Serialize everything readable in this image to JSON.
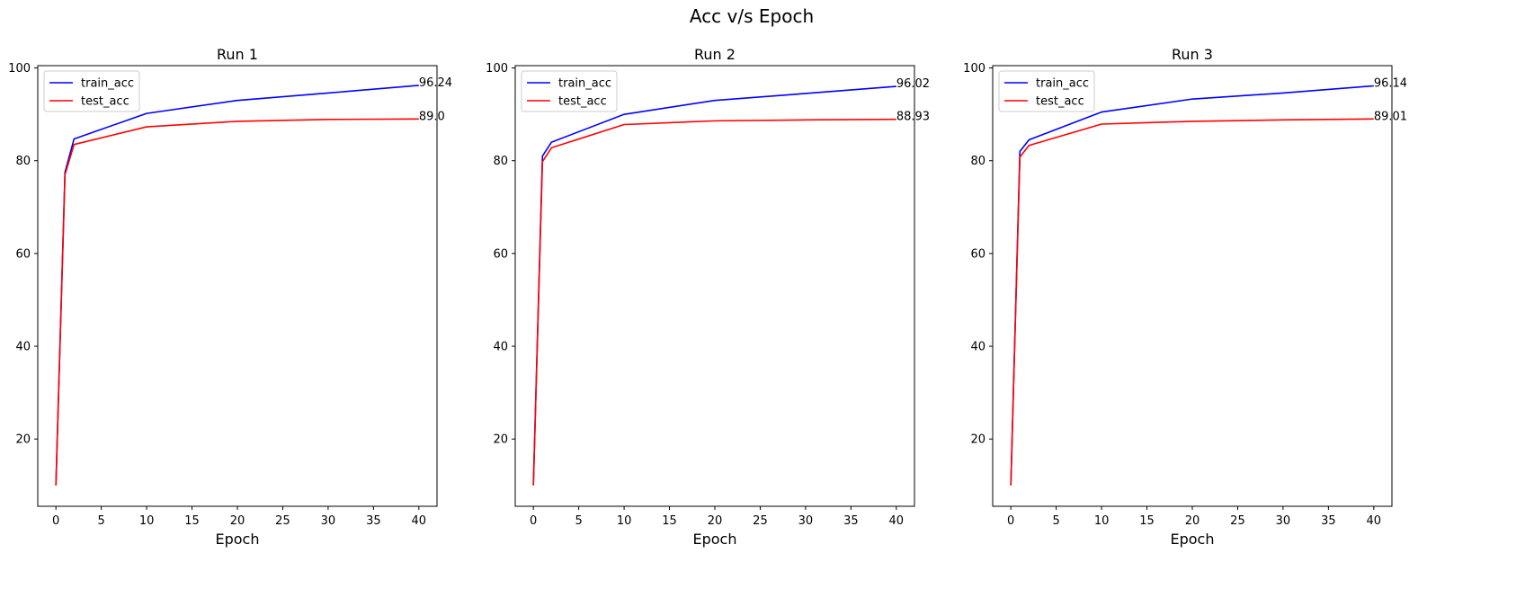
{
  "figure": {
    "title": "Acc v/s Epoch"
  },
  "chart_data": [
    {
      "type": "line",
      "title": "Run 1",
      "xlabel": "Epoch",
      "ylabel": "",
      "xlim": [
        -2,
        42
      ],
      "ylim": [
        5.5,
        100.5
      ],
      "xticks": [
        0,
        5,
        10,
        15,
        20,
        25,
        30,
        35,
        40
      ],
      "yticks": [
        20,
        40,
        60,
        80,
        100
      ],
      "legend": "top-left",
      "grid": false,
      "series": [
        {
          "name": "train_acc",
          "color": "#0000ff",
          "x": [
            0,
            1,
            2,
            10,
            20,
            30,
            40
          ],
          "y": [
            10,
            77.5,
            84.7,
            90.2,
            93.0,
            94.6,
            96.24
          ],
          "end_label": "96.24"
        },
        {
          "name": "test_acc",
          "color": "#ff0000",
          "x": [
            0,
            1,
            2,
            10,
            20,
            30,
            40
          ],
          "y": [
            10,
            77.0,
            83.5,
            87.3,
            88.5,
            88.9,
            89.0
          ],
          "end_label": "89.0"
        }
      ]
    },
    {
      "type": "line",
      "title": "Run 2",
      "xlabel": "Epoch",
      "ylabel": "",
      "xlim": [
        -2,
        42
      ],
      "ylim": [
        5.5,
        100.5
      ],
      "xticks": [
        0,
        5,
        10,
        15,
        20,
        25,
        30,
        35,
        40
      ],
      "yticks": [
        20,
        40,
        60,
        80,
        100
      ],
      "legend": "top-left",
      "grid": false,
      "series": [
        {
          "name": "train_acc",
          "color": "#0000ff",
          "x": [
            0,
            1,
            2,
            10,
            20,
            30,
            40
          ],
          "y": [
            10,
            81.0,
            84.0,
            90.0,
            93.0,
            94.5,
            96.02
          ],
          "end_label": "96.02"
        },
        {
          "name": "test_acc",
          "color": "#ff0000",
          "x": [
            0,
            1,
            2,
            10,
            20,
            30,
            40
          ],
          "y": [
            10,
            79.8,
            82.8,
            87.8,
            88.6,
            88.8,
            88.93
          ],
          "end_label": "88.93"
        }
      ]
    },
    {
      "type": "line",
      "title": "Run 3",
      "xlabel": "Epoch",
      "ylabel": "",
      "xlim": [
        -2,
        42
      ],
      "ylim": [
        5.5,
        100.5
      ],
      "xticks": [
        0,
        5,
        10,
        15,
        20,
        25,
        30,
        35,
        40
      ],
      "yticks": [
        20,
        40,
        60,
        80,
        100
      ],
      "legend": "top-left",
      "grid": false,
      "series": [
        {
          "name": "train_acc",
          "color": "#0000ff",
          "x": [
            0,
            1,
            2,
            10,
            20,
            30,
            40
          ],
          "y": [
            10,
            82.0,
            84.5,
            90.5,
            93.3,
            94.6,
            96.14
          ],
          "end_label": "96.14"
        },
        {
          "name": "test_acc",
          "color": "#ff0000",
          "x": [
            0,
            1,
            2,
            10,
            20,
            30,
            40
          ],
          "y": [
            10,
            80.8,
            83.3,
            87.9,
            88.5,
            88.8,
            89.01
          ],
          "end_label": "89.01"
        }
      ]
    }
  ]
}
